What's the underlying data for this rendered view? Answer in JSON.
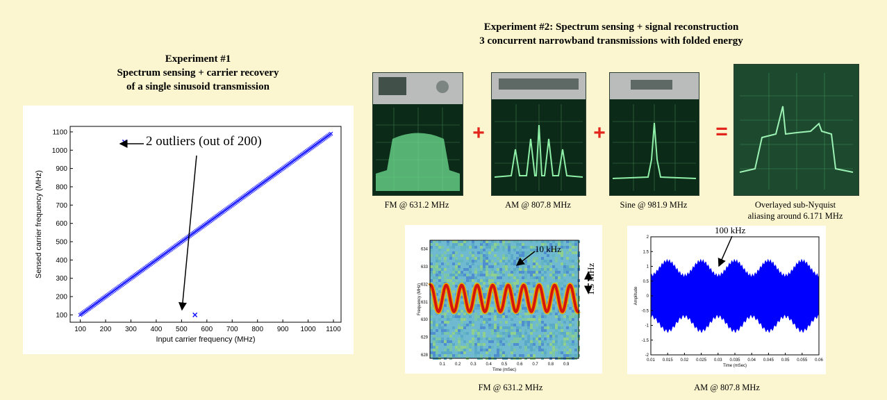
{
  "exp1": {
    "title": [
      "Experiment #1",
      "Spectrum sensing + carrier recovery",
      "of a single sinusoid transmission"
    ],
    "annotation": "2 outliers (out of 200)"
  },
  "exp2": {
    "title": [
      "Experiment #2:  Spectrum sensing + signal reconstruction",
      "3 concurrent narrowband transmissions with folded energy"
    ],
    "photos": [
      {
        "caption": "FM @ 631.2 MHz"
      },
      {
        "caption": "AM @ 807.8 MHz"
      },
      {
        "caption": "Sine @ 981.9 MHz"
      },
      {
        "caption": [
          "Overlayed sub-Nyquist",
          "aliasing around 6.171 MHz"
        ]
      }
    ],
    "operators": [
      "+",
      "+",
      "="
    ],
    "fm_plot": {
      "caption": "FM @ 631.2 MHz",
      "annotation_freq": "10 kHz",
      "annotation_span": "1.5 MHz"
    },
    "am_plot": {
      "caption": "AM @ 807.8 MHz",
      "annotation_freq": "100 kHz"
    }
  },
  "chart_data": [
    {
      "type": "scatter",
      "title": "",
      "xlabel": "Input carrier frequency (MHz)",
      "ylabel": "Sensed carrier frequency (MHz)",
      "xlim": [
        60,
        1130
      ],
      "ylim": [
        60,
        1130
      ],
      "xticks": [
        100,
        200,
        300,
        400,
        500,
        600,
        700,
        800,
        900,
        1000,
        1100
      ],
      "yticks": [
        100,
        200,
        300,
        400,
        500,
        600,
        700,
        800,
        900,
        1000,
        1100
      ],
      "series": [
        {
          "x_range": [
            100,
            1090
          ],
          "points": 200,
          "relation": "y = x"
        }
      ],
      "outliers": [
        {
          "x": 275,
          "y": 1045
        },
        {
          "x": 553,
          "y": 100
        }
      ],
      "marker_color": "#1a1aff"
    },
    {
      "type": "heatmap",
      "xlabel": "Time (mSec)",
      "ylabel": "Frequency (MHz)",
      "xticks": [
        0.1,
        0.2,
        0.3,
        0.4,
        0.5,
        0.6,
        0.7,
        0.8,
        0.9
      ],
      "yticks": [
        628,
        629,
        630,
        631,
        632,
        633,
        634
      ],
      "xlim": [
        0.02,
        0.98
      ],
      "ylim": [
        627.8,
        634.5
      ],
      "center_mhz": 631.2,
      "deviation_mhz": 0.75,
      "modulation_khz": 10
    },
    {
      "type": "line",
      "xlabel": "Time (mSec)",
      "ylabel": "Amplitude",
      "xticks": [
        "0.01",
        "0.015",
        "0.02",
        "0.025",
        "0.03",
        "0.035",
        "0.04",
        "0.045",
        "0.05",
        "0.055",
        "0.06"
      ],
      "yticks": [
        "-2",
        "-1.5",
        "-1",
        "-0.5",
        "0",
        "0.5",
        "1",
        "1.5",
        "2"
      ],
      "xlim": [
        0.01,
        0.06
      ],
      "ylim": [
        -2,
        2
      ],
      "modulation_khz": 100,
      "color": "#0000ff"
    }
  ]
}
